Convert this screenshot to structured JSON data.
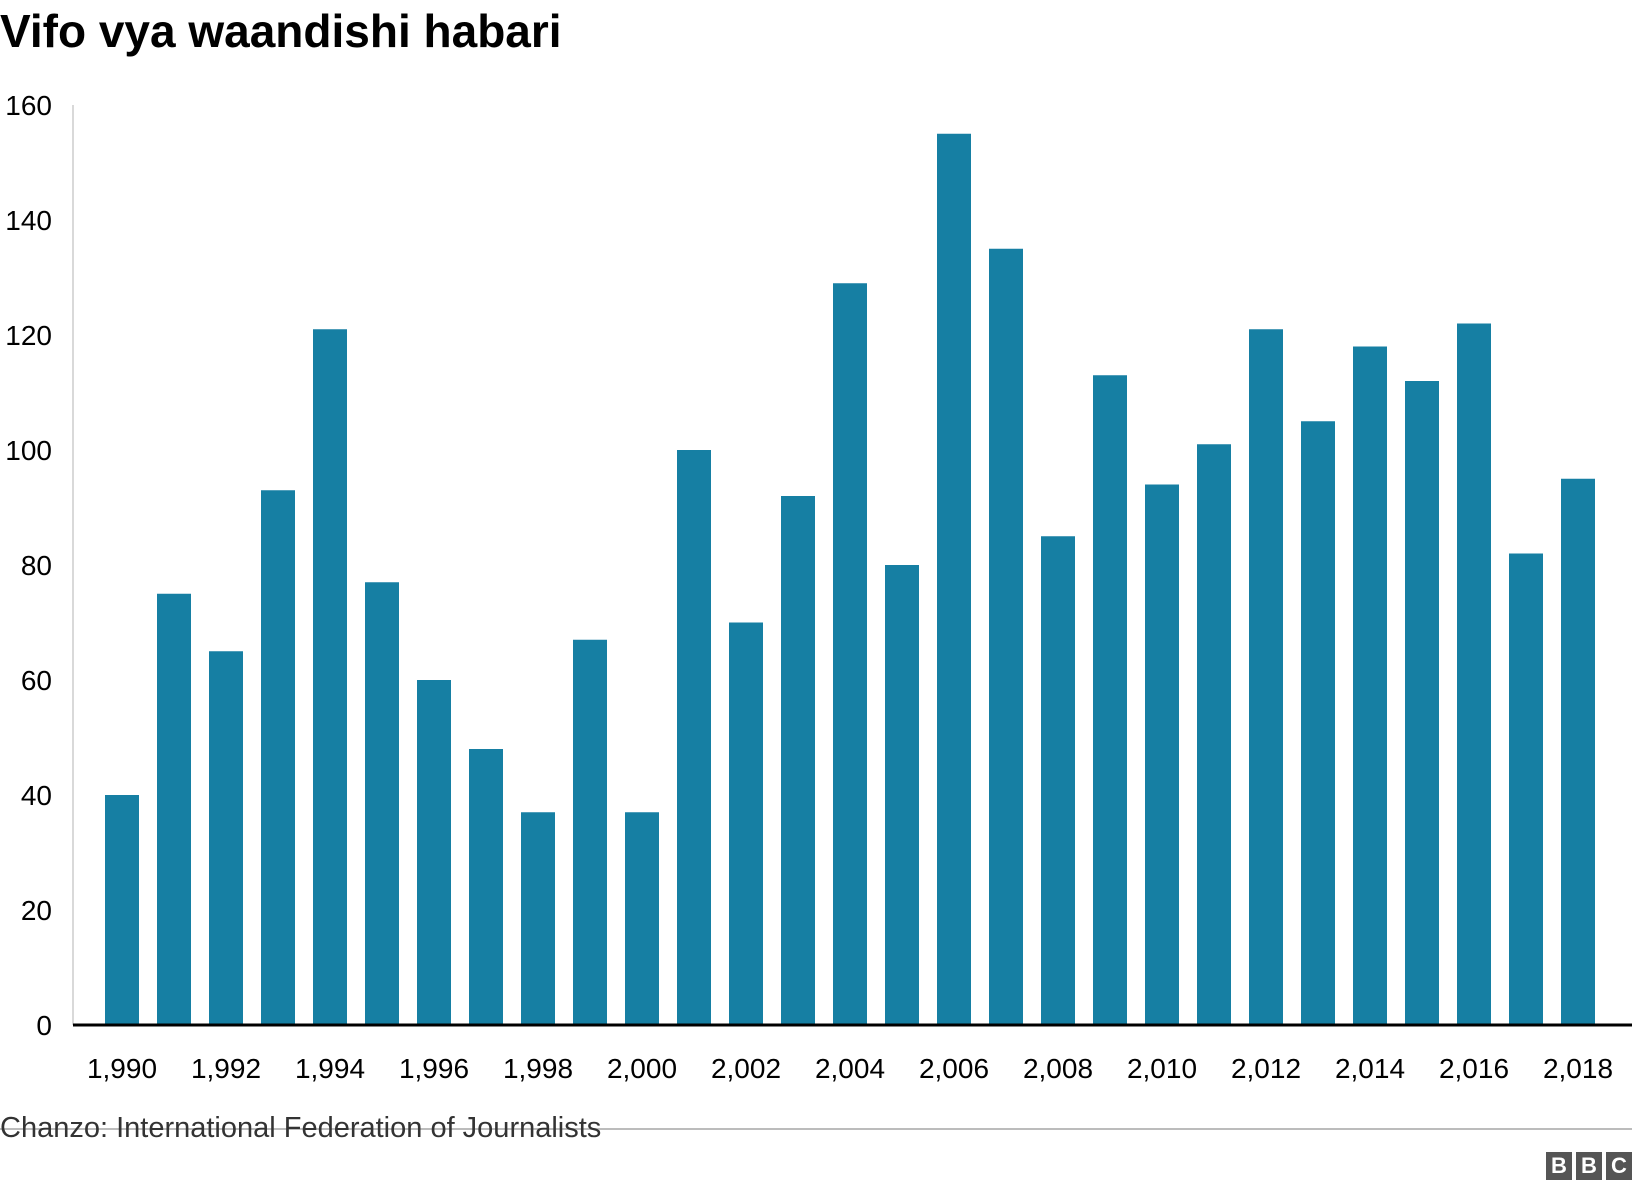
{
  "chart_data": {
    "type": "bar",
    "title": "Vifo vya waandishi habari",
    "xlabel": "",
    "ylabel": "",
    "ylim": [
      0,
      160
    ],
    "yticks": [
      0,
      20,
      40,
      60,
      80,
      100,
      120,
      140,
      160
    ],
    "categories": [
      "1990",
      "1991",
      "1992",
      "1993",
      "1994",
      "1995",
      "1996",
      "1997",
      "1998",
      "1999",
      "2000",
      "2001",
      "2002",
      "2003",
      "2004",
      "2005",
      "2006",
      "2007",
      "2008",
      "2009",
      "2010",
      "2011",
      "2012",
      "2013",
      "2014",
      "2015",
      "2016",
      "2017",
      "2018"
    ],
    "xtick_labels": [
      "1,990",
      "1,992",
      "1,994",
      "1,996",
      "1,998",
      "2,000",
      "2,002",
      "2,004",
      "2,006",
      "2,008",
      "2,010",
      "2,012",
      "2,014",
      "2,016",
      "2,018"
    ],
    "values": [
      40,
      75,
      65,
      93,
      121,
      77,
      60,
      48,
      37,
      67,
      37,
      100,
      70,
      92,
      129,
      80,
      155,
      135,
      85,
      113,
      94,
      101,
      121,
      105,
      118,
      112,
      122,
      82,
      95
    ],
    "bar_color": "#167fa3",
    "grid": false,
    "legend": "none"
  },
  "footer": {
    "source": "Chanzo: International Federation of Journalists",
    "logo_letters": [
      "B",
      "B",
      "C"
    ]
  }
}
